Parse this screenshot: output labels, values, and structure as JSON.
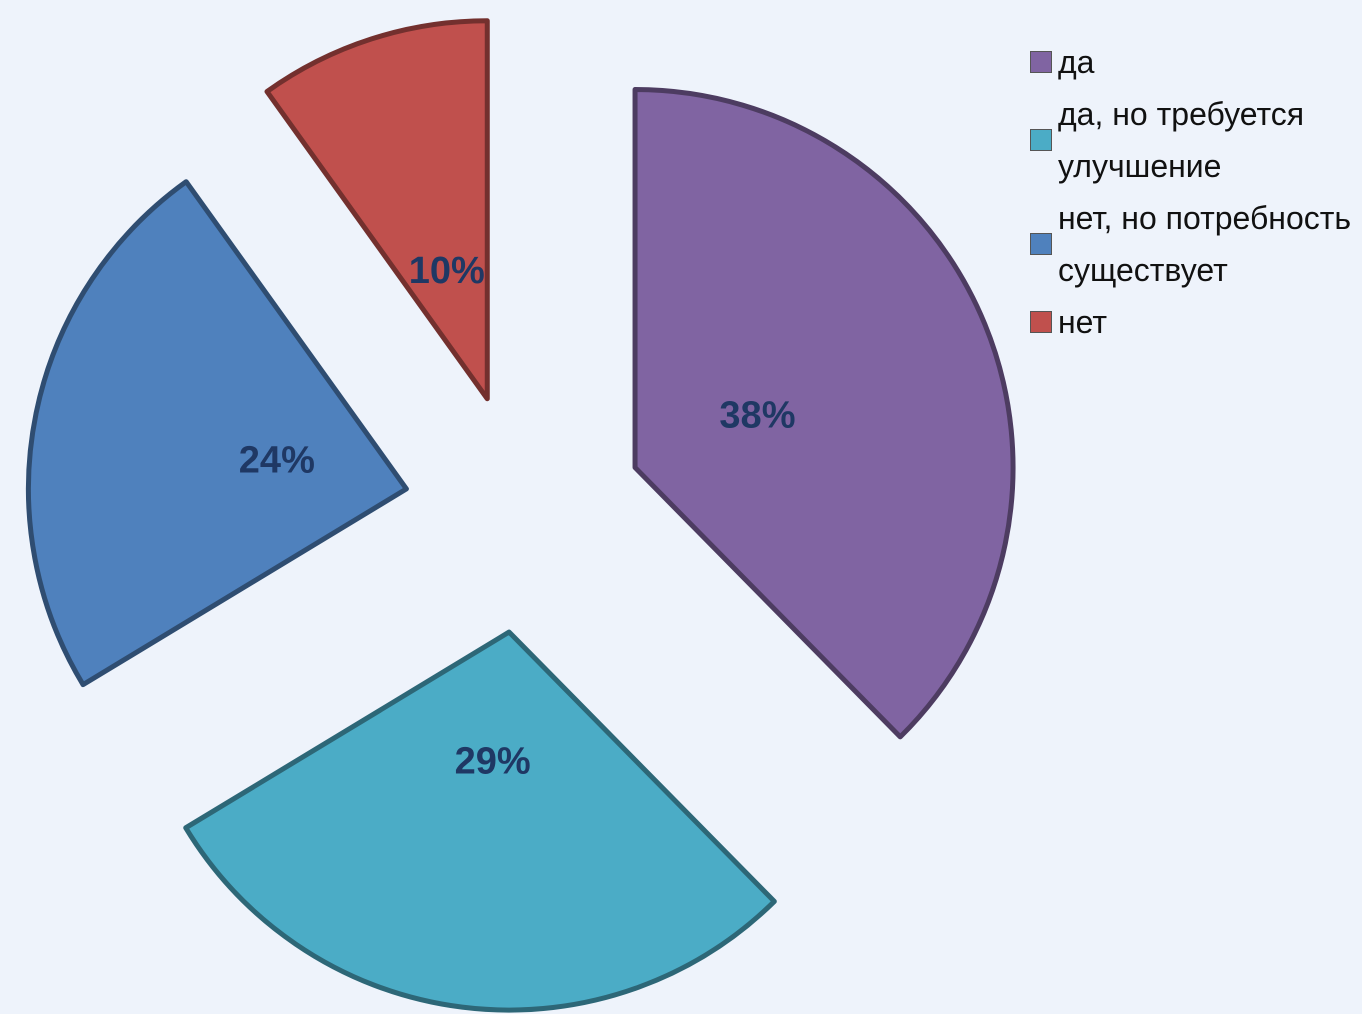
{
  "chart_data": {
    "type": "pie",
    "categories": [
      "да",
      "да, но требуется улучшение",
      "нет, но потребность существует",
      "нет"
    ],
    "values": [
      38,
      29,
      24,
      10
    ],
    "value_labels": [
      "38%",
      "29%",
      "24%",
      "10%"
    ],
    "colors": [
      "#8064a2",
      "#4bacc6",
      "#4f81bd",
      "#c0504d"
    ],
    "legend": "right"
  }
}
